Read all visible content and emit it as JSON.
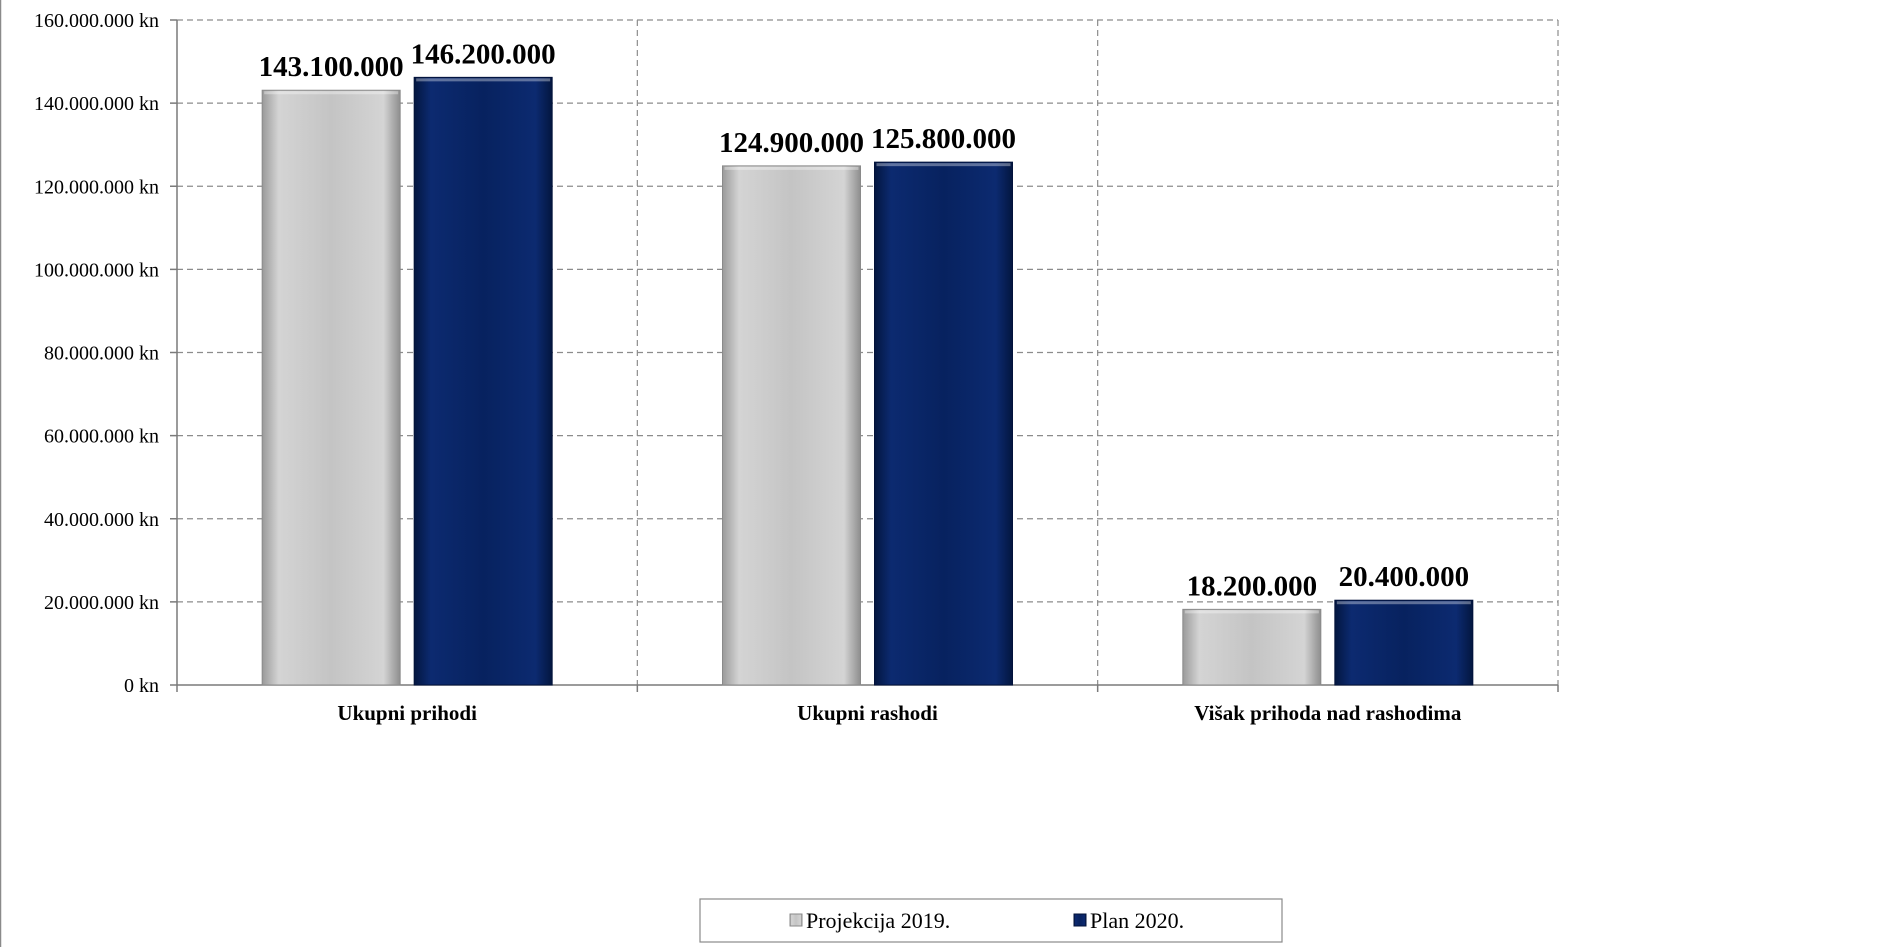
{
  "chart_data": {
    "type": "bar",
    "categories": [
      "Ukupni prihodi",
      "Ukupni rashodi",
      "Višak prihoda nad rashodima"
    ],
    "series": [
      {
        "name": "Projekcija 2019.",
        "values": [
          143100000,
          124900000,
          18200000
        ],
        "value_labels": [
          "143.100.000",
          "124.900.000",
          "18.200.000"
        ],
        "color": "#c8c8c8"
      },
      {
        "name": "Plan 2020.",
        "values": [
          146200000,
          125800000,
          20400000
        ],
        "value_labels": [
          "146.200.000",
          "125.800.000",
          "20.400.000"
        ],
        "color": "#0a2566"
      }
    ],
    "y_ticks": [
      {
        "value": 0,
        "label": "0 kn"
      },
      {
        "value": 20000000,
        "label": "20.000.000 kn"
      },
      {
        "value": 40000000,
        "label": "40.000.000 kn"
      },
      {
        "value": 60000000,
        "label": "60.000.000 kn"
      },
      {
        "value": 80000000,
        "label": "80.000.000 kn"
      },
      {
        "value": 100000000,
        "label": "100.000.000 kn"
      },
      {
        "value": 120000000,
        "label": "120.000.000 kn"
      },
      {
        "value": 140000000,
        "label": "140.000.000 kn"
      },
      {
        "value": 160000000,
        "label": "160.000.000 kn"
      }
    ],
    "ylim": [
      0,
      160000000
    ],
    "grid": true,
    "grid_style": "dashed",
    "legend_position": "bottom-center"
  }
}
